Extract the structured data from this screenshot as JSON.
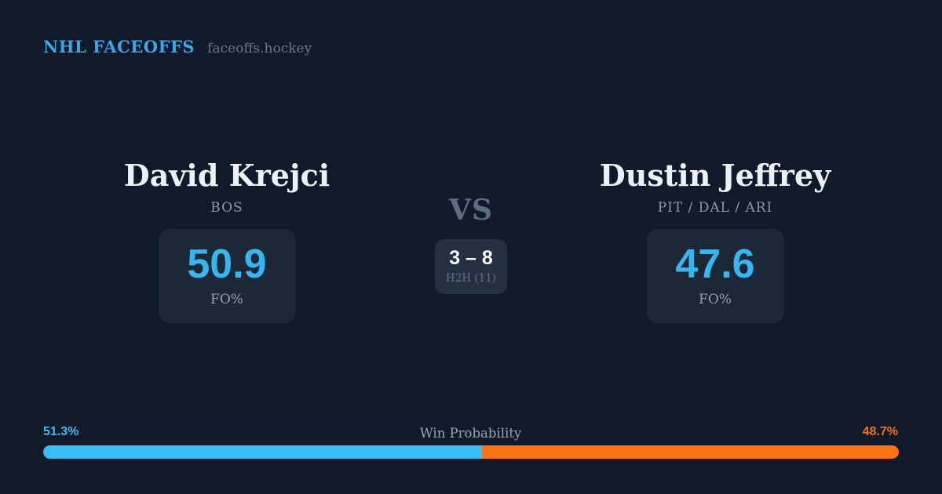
{
  "header": {
    "brand": "NHL FACEOFFS",
    "site": "faceoffs.hockey"
  },
  "player_left": {
    "name": "David Krejci",
    "teams": "BOS",
    "fo_value": "50.9",
    "fo_label": "FO%"
  },
  "player_right": {
    "name": "Dustin Jeffrey",
    "teams": "PIT / DAL / ARI",
    "fo_value": "47.6",
    "fo_label": "FO%"
  },
  "matchup": {
    "vs_label": "VS",
    "h2h_score": "3 – 8",
    "h2h_label": "H2H (11)"
  },
  "win_probability": {
    "label": "Win Probability",
    "left_pct": 51.3,
    "right_pct": 48.7,
    "left_text": "51.3%",
    "right_text": "48.7%"
  },
  "colors": {
    "background": "#111a2b",
    "card": "#1c2836",
    "h2h_card": "#233143",
    "accent_blue": "#3abcf5",
    "number_blue": "#38b6f1",
    "accent_orange": "#f97316",
    "brand_blue": "#3ea6e2"
  },
  "chart_data": {
    "type": "bar",
    "subtype": "horizontal-stacked-percentage",
    "title": "Win Probability",
    "series": [
      {
        "name": "David Krejci",
        "value": 51.3,
        "color": "#3abcf5"
      },
      {
        "name": "Dustin Jeffrey",
        "value": 48.7,
        "color": "#f97316"
      }
    ],
    "xlim": [
      0,
      100
    ],
    "legend_position": "none",
    "grid": false,
    "supporting_stats": {
      "fo_pct": {
        "David Krejci": 50.9,
        "Dustin Jeffrey": 47.6
      },
      "head_to_head": {
        "score": "3 – 8",
        "total_meetings": 11
      }
    }
  }
}
